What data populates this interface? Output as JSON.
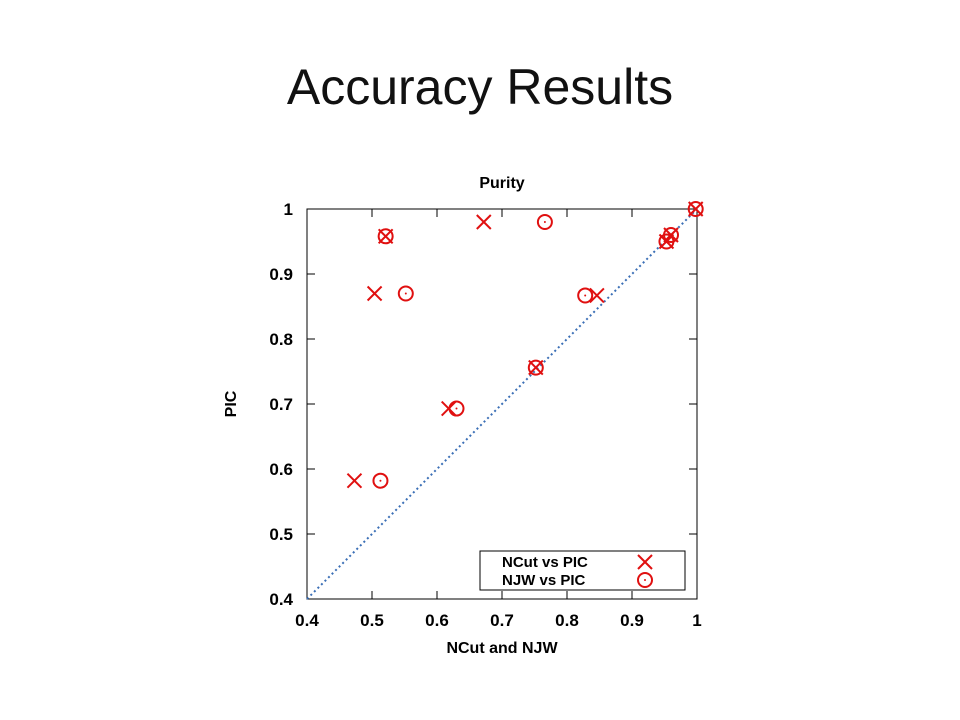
{
  "slide": {
    "title": "Accuracy Results"
  },
  "chart_data": {
    "type": "scatter",
    "title": "Purity",
    "xlabel": "NCut and NJW",
    "ylabel": "PIC",
    "xlim": [
      0.4,
      1.0
    ],
    "ylim": [
      0.4,
      1.0
    ],
    "xticks": [
      0.4,
      0.5,
      0.6,
      0.7,
      0.8,
      0.9,
      1
    ],
    "yticks": [
      0.4,
      0.5,
      0.6,
      0.7,
      0.8,
      0.9,
      1
    ],
    "xtick_labels": [
      "0.4",
      "0.5",
      "0.6",
      "0.7",
      "0.8",
      "0.9",
      "1"
    ],
    "ytick_labels": [
      "0.4",
      "0.5",
      "0.6",
      "0.7",
      "0.8",
      "0.9",
      "1"
    ],
    "grid": false,
    "legend_position": "bottom-right",
    "diagonal": {
      "from": [
        0.4,
        0.4
      ],
      "to": [
        1.0,
        1.0
      ],
      "style": "dotted",
      "color": "#3b6fb6"
    },
    "series": [
      {
        "name": "NCut vs PIC",
        "marker": "x",
        "color": "#e01010",
        "points": [
          [
            0.521,
            0.958
          ],
          [
            0.672,
            0.98
          ],
          [
            0.504,
            0.87
          ],
          [
            0.846,
            0.867
          ],
          [
            0.752,
            0.756
          ],
          [
            0.618,
            0.693
          ],
          [
            0.473,
            0.582
          ],
          [
            0.953,
            0.95
          ],
          [
            0.96,
            0.96
          ],
          [
            0.998,
            1.0
          ]
        ]
      },
      {
        "name": "NJW vs PIC",
        "marker": "circle",
        "color": "#e01010",
        "points": [
          [
            0.521,
            0.958
          ],
          [
            0.766,
            0.98
          ],
          [
            0.552,
            0.87
          ],
          [
            0.828,
            0.867
          ],
          [
            0.752,
            0.756
          ],
          [
            0.63,
            0.693
          ],
          [
            0.513,
            0.582
          ],
          [
            0.953,
            0.95
          ],
          [
            0.96,
            0.96
          ],
          [
            0.998,
            1.0
          ]
        ]
      }
    ]
  }
}
